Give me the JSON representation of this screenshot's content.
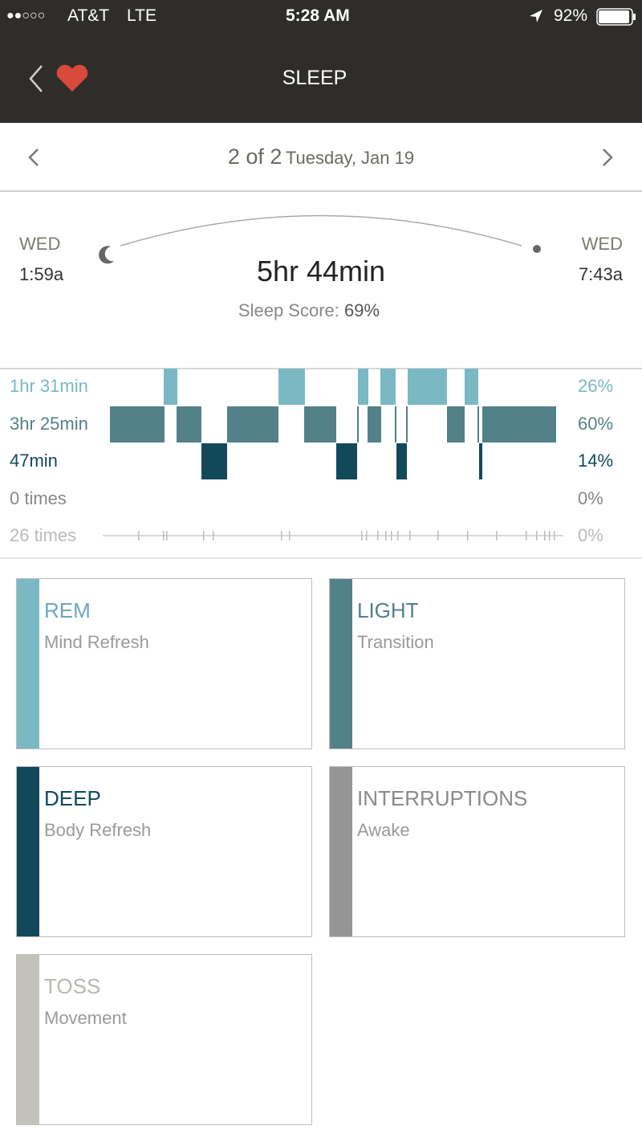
{
  "status_bar": {
    "signal": "●●○○○",
    "carrier": "AT&T",
    "network": "LTE",
    "time": "5:28 AM",
    "battery": "92%"
  },
  "nav": {
    "title": "SLEEP"
  },
  "date_nav": {
    "count": "2 of 2",
    "date": "Tuesday, Jan 19"
  },
  "summary": {
    "start_day": "WED",
    "start_time": "1:59a",
    "end_day": "WED",
    "end_time": "7:43a",
    "duration": "5hr 44min",
    "score_label": "Sleep Score:",
    "score": "69%"
  },
  "stages": [
    {
      "duration": "1hr 31min",
      "percent": "26%"
    },
    {
      "duration": "3hr 25min",
      "percent": "60%"
    },
    {
      "duration": "47min",
      "percent": "14%"
    },
    {
      "duration": "0 times",
      "percent": "0%"
    },
    {
      "duration": "26 times",
      "percent": "0%"
    }
  ],
  "cards": [
    {
      "title": "REM",
      "subtitle": "Mind Refresh"
    },
    {
      "title": "LIGHT",
      "subtitle": "Transition"
    },
    {
      "title": "DEEP",
      "subtitle": "Body Refresh"
    },
    {
      "title": "INTERRUPTIONS",
      "subtitle": "Awake"
    },
    {
      "title": "TOSS",
      "subtitle": "Movement"
    }
  ]
}
